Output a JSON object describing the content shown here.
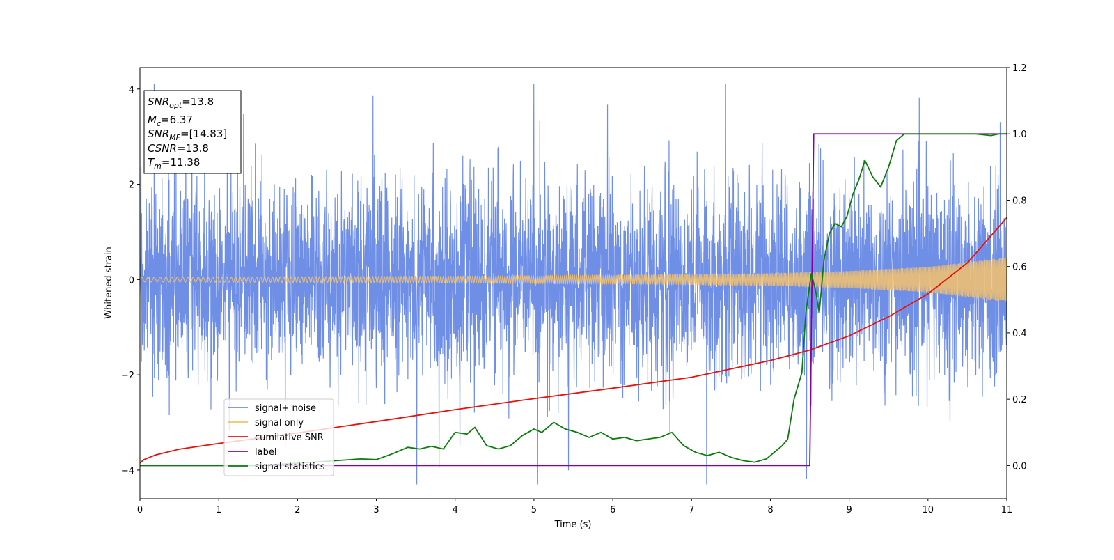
{
  "chart_data": {
    "type": "line",
    "xlabel": "Time (s)",
    "ylabel": "Whitened strain",
    "xlim": [
      0,
      11
    ],
    "ylim": [
      -4.6,
      4.45
    ],
    "y2lim": [
      -0.1,
      1.2
    ],
    "xticks": [
      0,
      1,
      2,
      3,
      4,
      5,
      6,
      7,
      8,
      9,
      10,
      11
    ],
    "yticks": [
      -4,
      -2,
      0,
      2,
      4
    ],
    "y2ticks": [
      "0.0",
      "0.2",
      "0.4",
      "0.6",
      "0.8",
      "1.0",
      "1.2"
    ],
    "grid": false,
    "legend_position": "lower-left",
    "annotation": {
      "lines": [
        {
          "sym": "SNR",
          "sub": "opt",
          "value": "=13.8"
        },
        {
          "sym": "M",
          "sub": "c",
          "value": "=6.37"
        },
        {
          "sym": "SNR",
          "sub": "MF",
          "value": "=[14.83]"
        },
        {
          "sym": "CSNR",
          "sub": "",
          "value": "=13.8"
        },
        {
          "sym": "T",
          "sub": "m",
          "value": "=11.38"
        }
      ]
    },
    "series": [
      {
        "name": "signal+ noise",
        "color": "#6f8fe6",
        "axis": "left",
        "kind": "noise",
        "amplitude": 1.0
      },
      {
        "name": "signal only",
        "color": "#f4c26b",
        "axis": "left",
        "kind": "chirp",
        "envelope_x": [
          0,
          2,
          4,
          6,
          8,
          9,
          10,
          11
        ],
        "envelope_y": [
          0.05,
          0.06,
          0.07,
          0.09,
          0.13,
          0.18,
          0.27,
          0.47
        ]
      },
      {
        "name": "cumilative SNR",
        "color": "#e8120c",
        "axis": "left",
        "x": [
          0,
          0.05,
          0.2,
          0.5,
          1,
          1.5,
          2,
          3,
          4,
          5,
          6,
          7,
          8,
          8.5,
          9,
          9.5,
          10,
          10.5,
          11
        ],
        "y": [
          -3.85,
          -3.78,
          -3.68,
          -3.56,
          -3.44,
          -3.33,
          -3.22,
          -2.98,
          -2.73,
          -2.5,
          -2.28,
          -2.05,
          -1.7,
          -1.48,
          -1.18,
          -0.78,
          -0.3,
          0.35,
          1.3
        ]
      },
      {
        "name": "label",
        "color": "#8800a0",
        "axis": "right",
        "x": [
          0,
          8.5,
          8.55,
          11
        ],
        "y": [
          0,
          0,
          1,
          1
        ]
      },
      {
        "name": "signal statistics",
        "color": "#0a7d0a",
        "axis": "right",
        "x": [
          0,
          1.5,
          2.2,
          2.5,
          2.8,
          3.0,
          3.2,
          3.4,
          3.55,
          3.7,
          3.85,
          4.0,
          4.15,
          4.25,
          4.4,
          4.55,
          4.7,
          4.85,
          5.0,
          5.1,
          5.25,
          5.4,
          5.55,
          5.7,
          5.85,
          6.0,
          6.15,
          6.3,
          6.45,
          6.6,
          6.75,
          6.9,
          7.05,
          7.2,
          7.35,
          7.5,
          7.65,
          7.8,
          7.95,
          8.05,
          8.15,
          8.22,
          8.3,
          8.4,
          8.45,
          8.52,
          8.58,
          8.62,
          8.68,
          8.75,
          8.82,
          8.9,
          8.97,
          9.05,
          9.12,
          9.2,
          9.3,
          9.4,
          9.5,
          9.6,
          9.7,
          9.8,
          9.9,
          10.0,
          10.2,
          10.4,
          10.6,
          10.8,
          10.9,
          11.0
        ],
        "y": [
          0.0,
          0.0,
          0.01,
          0.015,
          0.02,
          0.018,
          0.035,
          0.055,
          0.05,
          0.058,
          0.05,
          0.1,
          0.095,
          0.115,
          0.06,
          0.05,
          0.06,
          0.09,
          0.11,
          0.1,
          0.13,
          0.11,
          0.1,
          0.085,
          0.1,
          0.08,
          0.085,
          0.075,
          0.08,
          0.085,
          0.1,
          0.06,
          0.04,
          0.03,
          0.04,
          0.025,
          0.015,
          0.01,
          0.02,
          0.04,
          0.06,
          0.08,
          0.2,
          0.28,
          0.46,
          0.58,
          0.52,
          0.46,
          0.62,
          0.7,
          0.73,
          0.72,
          0.75,
          0.82,
          0.86,
          0.92,
          0.87,
          0.84,
          0.9,
          0.98,
          1.0,
          1.0,
          1.0,
          1.0,
          1.0,
          1.0,
          1.0,
          0.995,
          1.0,
          1.0
        ]
      }
    ]
  }
}
